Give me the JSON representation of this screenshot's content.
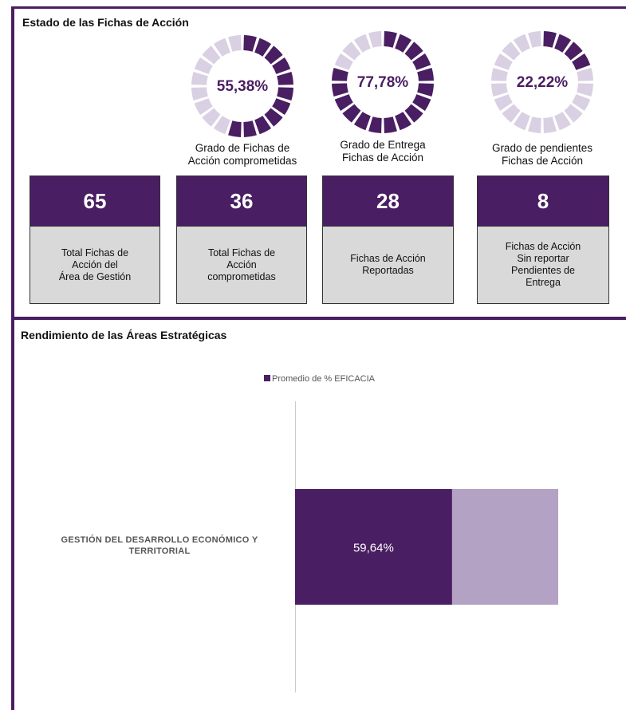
{
  "status": {
    "title": "Estado de las Fichas de Acción",
    "fill_color": "#4a1e62",
    "track_color": "#d9d0e3",
    "gauges": [
      {
        "value": 55.38,
        "value_label": "55,38%",
        "caption": "Grado de Fichas de\nAcción comprometidas"
      },
      {
        "value": 77.78,
        "value_label": "77,78%",
        "caption": "Grado de Entrega\nFichas de Acción"
      },
      {
        "value": 22.22,
        "value_label": "22,22%",
        "caption": "Grado de pendientes\nFichas de Acción"
      }
    ],
    "cards": [
      {
        "value": 65,
        "label": "Total Fichas de\nAcción del\nÁrea de Gestión"
      },
      {
        "value": 36,
        "label": "Total Fichas de\nAcción\ncomprometidas"
      },
      {
        "value": 28,
        "label": "Fichas de Acción\nReportadas"
      },
      {
        "value": 8,
        "label": "Fichas de Acción\nSin reportar\nPendientes de\nEntrega"
      }
    ]
  },
  "chart_data": {
    "type": "bar",
    "orientation": "horizontal",
    "title": "Rendimiento de las Áreas Estratégicas",
    "categories": [
      "GESTIÓN DEL DESARROLLO ECONÓMICO Y\nTERRITORIAL"
    ],
    "series": [
      {
        "name": "Promedio de % EFICACIA",
        "color": "#4a1e62",
        "values": [
          59.64
        ],
        "value_labels": [
          "59,64%"
        ]
      }
    ],
    "xlim": [
      0,
      100
    ],
    "track_color": "#b3a2c3"
  }
}
